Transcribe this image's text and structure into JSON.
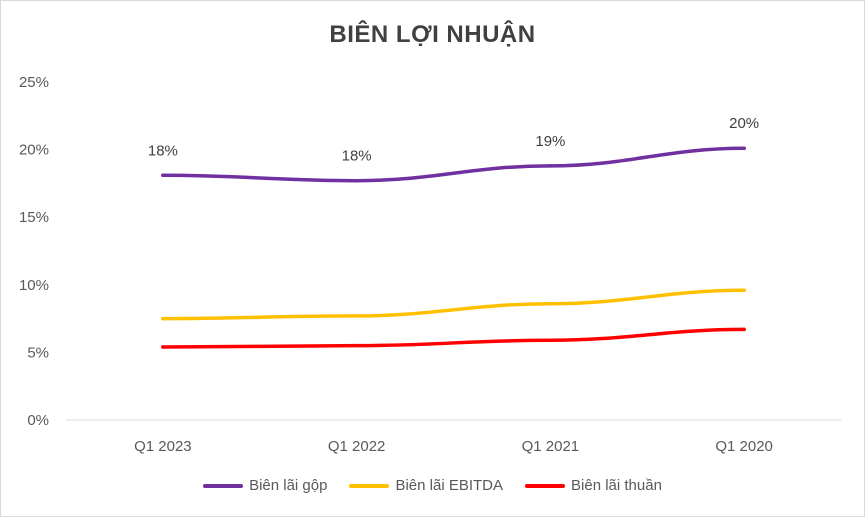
{
  "chart_data": {
    "type": "line",
    "title": "BIÊN LỢI NHUẬN",
    "categories": [
      "Q1 2023",
      "Q1 2022",
      "Q1 2021",
      "Q1 2020"
    ],
    "y_ticks": [
      "0%",
      "5%",
      "10%",
      "15%",
      "20%",
      "25%"
    ],
    "ylim": [
      0,
      25
    ],
    "grid": false,
    "legend_position": "bottom",
    "series": [
      {
        "name": "Biên lãi gộp",
        "color": "#7030a0",
        "values": [
          18.1,
          17.7,
          18.8,
          20.1
        ],
        "labels": [
          "18%",
          "18%",
          "19%",
          "20%"
        ]
      },
      {
        "name": "Biên lãi EBITDA",
        "color": "#ffc000",
        "values": [
          7.5,
          7.7,
          8.6,
          9.6
        ],
        "labels": []
      },
      {
        "name": "Biên lãi thuần",
        "color": "#ff0000",
        "values": [
          5.4,
          5.5,
          5.9,
          6.7
        ],
        "labels": []
      }
    ]
  }
}
